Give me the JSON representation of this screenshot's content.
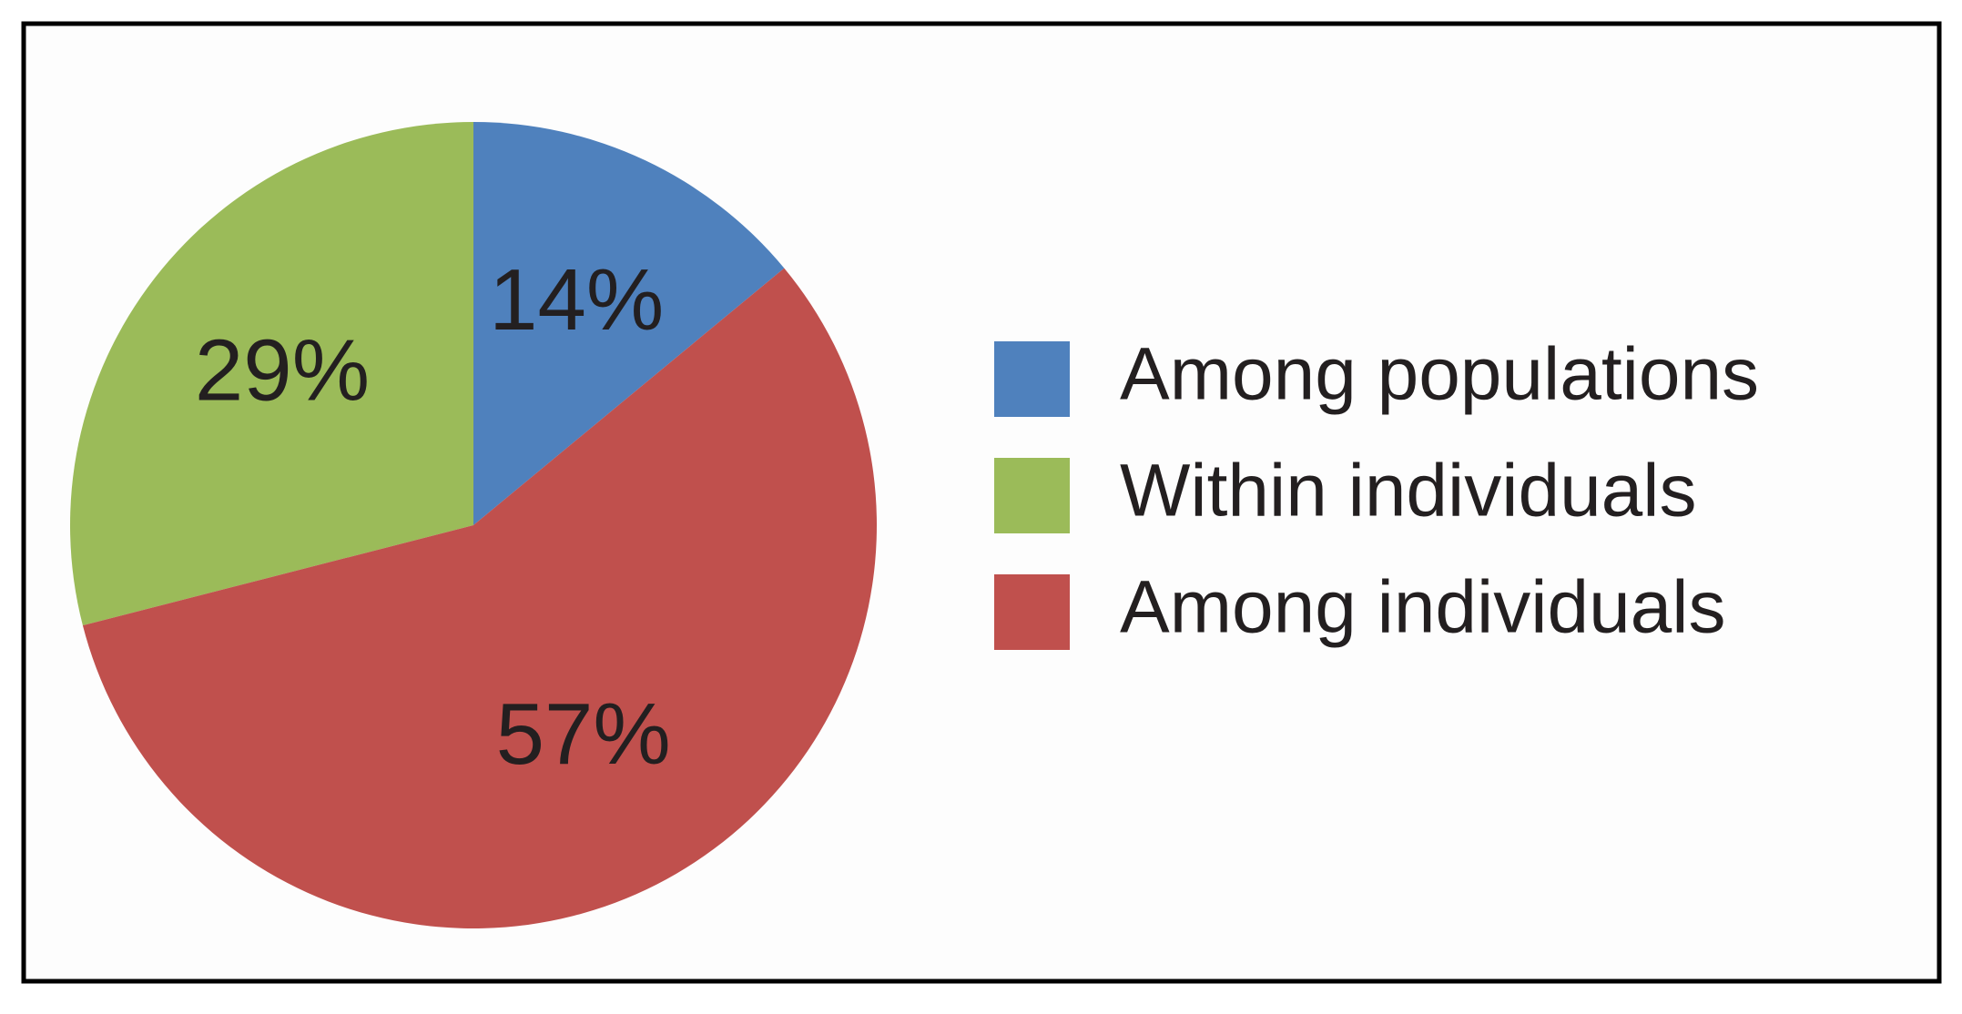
{
  "chart_data": {
    "type": "pie",
    "categories": [
      "Among populations",
      "Within individuals",
      "Among individuals"
    ],
    "values": [
      14,
      29,
      57
    ],
    "value_labels": [
      "14%",
      "29%",
      "57%"
    ],
    "colors": [
      "#4f81bd",
      "#9bbb59",
      "#c0504d"
    ],
    "direction": "counterclockwise",
    "legend": "right"
  }
}
